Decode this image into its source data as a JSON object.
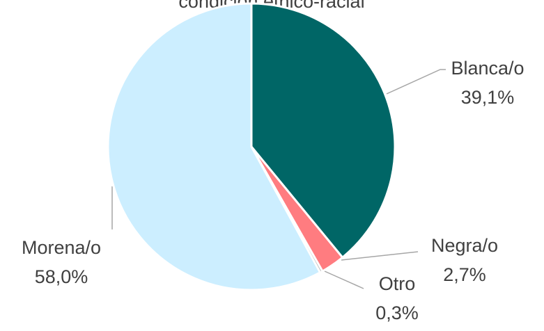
{
  "chart_data": {
    "type": "pie",
    "title": "condición étnico-racial",
    "categories": [
      "Blanca/o",
      "Negra/o",
      "Otro",
      "Morena/o"
    ],
    "values": [
      39.1,
      2.7,
      0.3,
      58.0
    ],
    "value_labels": [
      "39,1%",
      "2,7%",
      "0,3%",
      "58,0%"
    ],
    "colors": [
      "#006666",
      "#ff7c80",
      "#a6a6a6",
      "#cceeff"
    ]
  }
}
